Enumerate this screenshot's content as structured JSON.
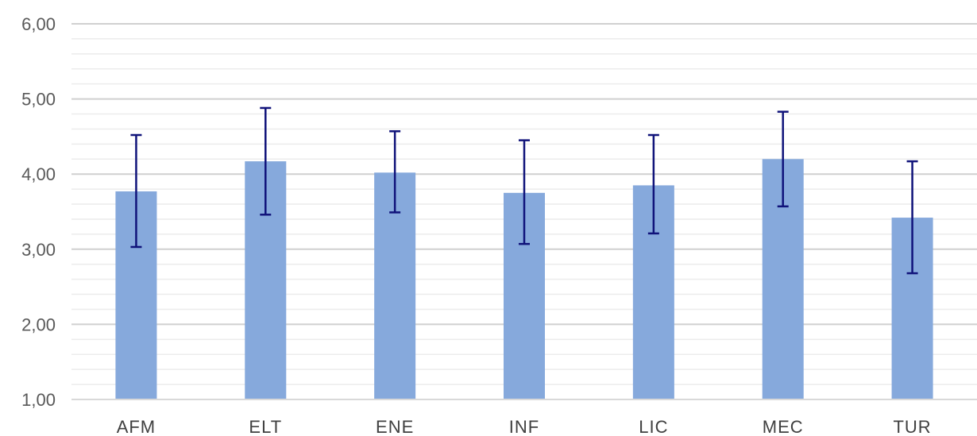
{
  "chart_data": {
    "type": "bar",
    "title": "",
    "xlabel": "",
    "ylabel": "",
    "categories": [
      "AFM",
      "ELT",
      "ENE",
      "INF",
      "LIC",
      "MEC",
      "TUR"
    ],
    "values": [
      3.77,
      4.17,
      4.02,
      3.75,
      3.85,
      4.2,
      3.42
    ],
    "error_bars": {
      "upper": [
        4.52,
        4.88,
        4.57,
        4.45,
        4.52,
        4.83,
        4.17
      ],
      "lower": [
        3.03,
        3.46,
        3.49,
        3.07,
        3.21,
        3.57,
        2.68
      ]
    },
    "ylim": [
      1,
      6
    ],
    "y_ticks": [
      "1,00",
      "2,00",
      "3,00",
      "4,00",
      "5,00",
      "6,00"
    ],
    "y_tick_values": [
      1,
      2,
      3,
      4,
      5,
      6
    ],
    "minor_grid_step": 0.2,
    "grid": true,
    "legend": "none",
    "colors": {
      "bar": "#86a9dc",
      "error_bar": "#10137a",
      "major_grid": "#d0d0d0",
      "minor_grid": "#ececec",
      "axis": "#d9d9d9"
    }
  }
}
